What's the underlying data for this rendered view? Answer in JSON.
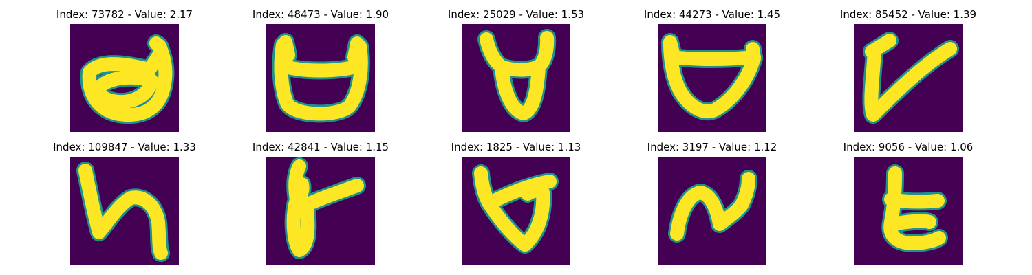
{
  "colors": {
    "background": "#440154",
    "stroke_core": "#fde725",
    "stroke_edge": "#21918c"
  },
  "panels": [
    {
      "title": "Index: 73782 - Value: 2.17",
      "glyph": "a-shape-with-horn"
    },
    {
      "title": "Index: 48473 - Value: 1.90",
      "glyph": "open-bowl-with-horns"
    },
    {
      "title": "Index: 25029 - Value: 1.53",
      "glyph": "narrow-bowl-with-horns"
    },
    {
      "title": "Index: 44273 - Value: 1.45",
      "glyph": "wide-bowl"
    },
    {
      "title": "Index: 85452 - Value: 1.39",
      "glyph": "v-stroke"
    },
    {
      "title": "Index: 109847 - Value: 1.33",
      "glyph": "h-like-stroke"
    },
    {
      "title": "Index: 42841 - Value: 1.15",
      "glyph": "loop-with-tail"
    },
    {
      "title": "Index: 1825 - Value: 1.13",
      "glyph": "triangle-loop"
    },
    {
      "title": "Index: 3197 - Value: 1.12",
      "glyph": "n-zigzag"
    },
    {
      "title": "Index: 9056 - Value: 1.06",
      "glyph": "t-like-curve"
    }
  ]
}
